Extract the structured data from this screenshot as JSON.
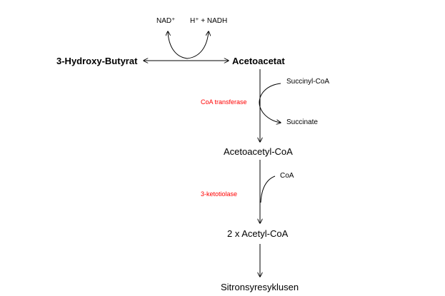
{
  "diagram": {
    "nodes": {
      "hydroxybutyrat": "3-Hydroxy-Butyrat",
      "acetoacetat": "Acetoacetat",
      "acetoacetyl_coa": "Acetoacetyl-CoA",
      "acetyl_coa": "2 x Acetyl-CoA",
      "sitronsyre": "Sitronsyresyklusen"
    },
    "cofactors": {
      "nad_plus": "NAD⁺",
      "h_nadh": "H⁺ + NADH",
      "succinyl_coa": "Succinyl-CoA",
      "succinate": "Succinate",
      "coa": "CoA"
    },
    "enzymes": {
      "coa_transferase": "CoA transferase",
      "ketotiolase": "3-ketotiolase"
    },
    "colors": {
      "enzyme": "#ff0000",
      "text": "#000000",
      "arrow": "#000000"
    }
  }
}
